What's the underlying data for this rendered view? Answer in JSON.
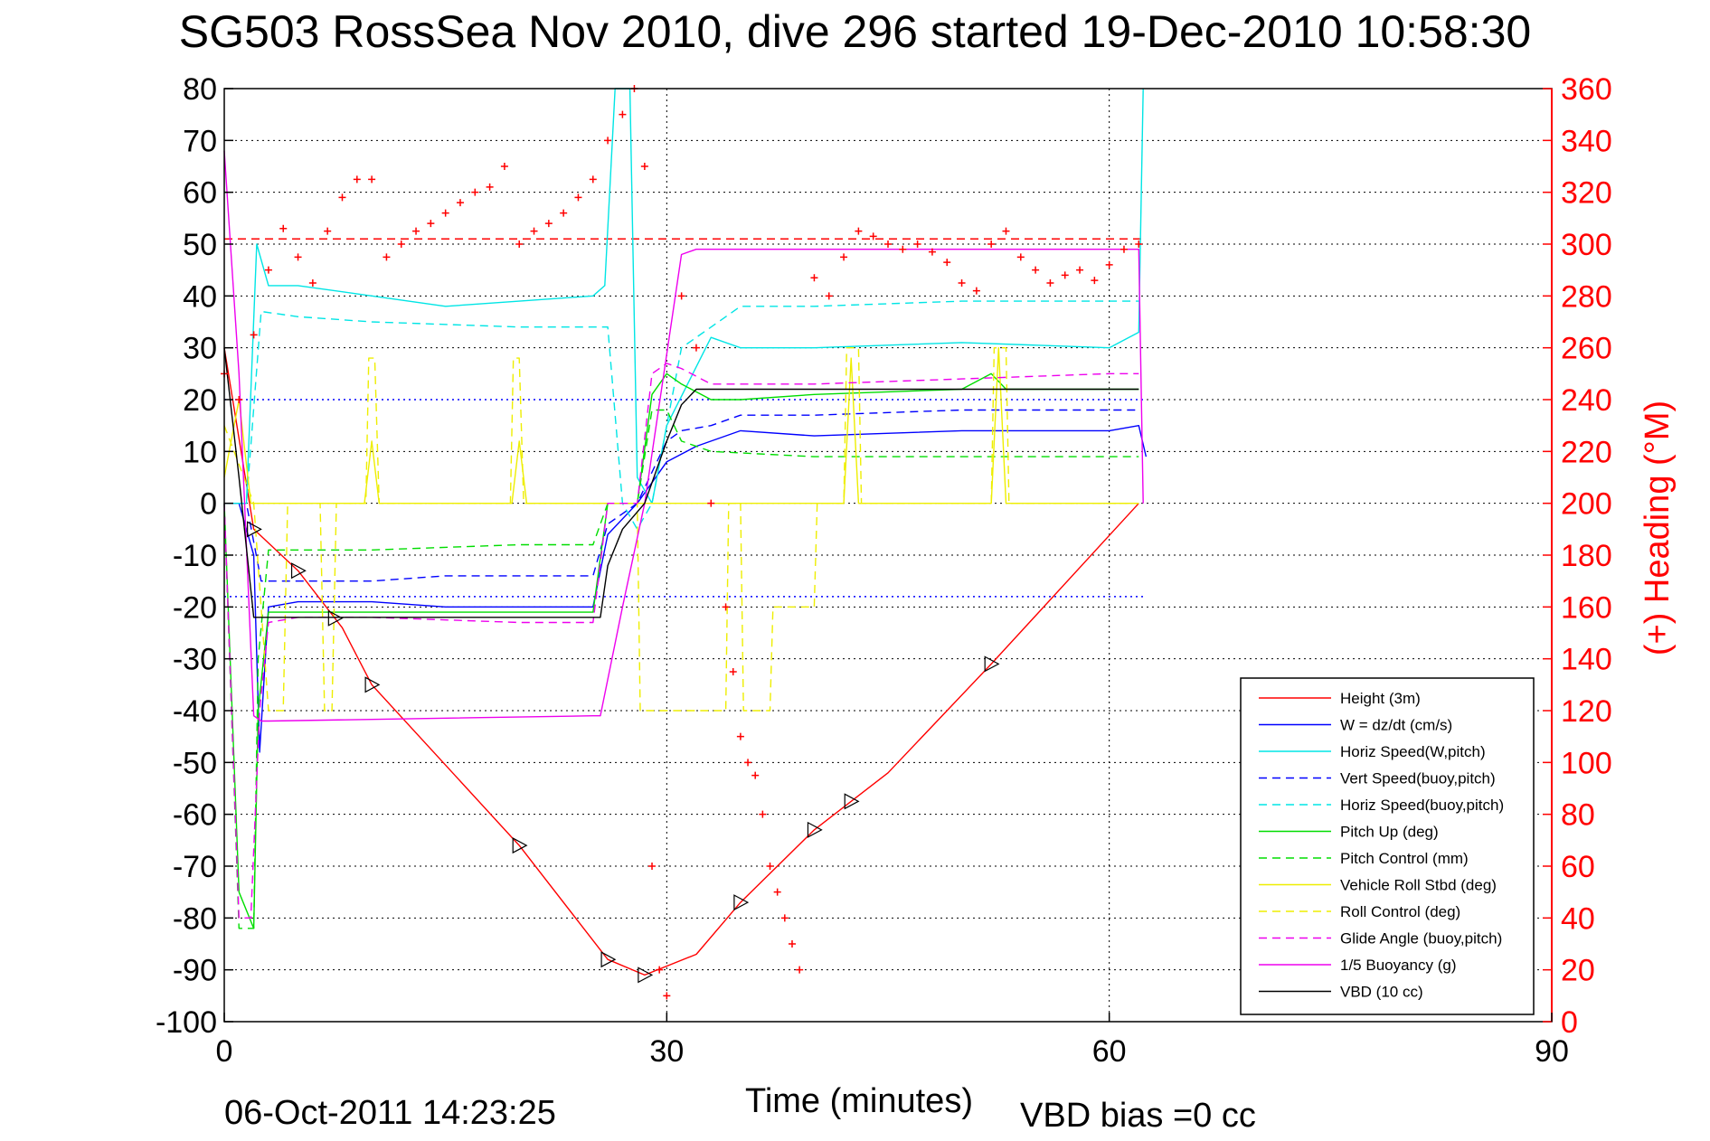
{
  "header": {
    "title": "SG503 RossSea Nov 2010, dive 296 started 19-Dec-2010 10:58:30"
  },
  "footer": {
    "timestamp": "06-Oct-2011 14:23:25",
    "vbd_bias": "VBD bias =0 cc"
  },
  "chart_data": {
    "type": "line",
    "title": "SG503 RossSea Nov 2010, dive 296 started 19-Dec-2010 10:58:30",
    "xlabel": "Time (minutes)",
    "ylabel": "",
    "y2label": "(+) Heading (°M)",
    "xlim": [
      0,
      90
    ],
    "ylim": [
      -100,
      80
    ],
    "y2lim": [
      0,
      360
    ],
    "xticks": [
      0,
      30,
      60,
      90
    ],
    "yticks": [
      -100,
      -90,
      -80,
      -70,
      -60,
      -50,
      -40,
      -30,
      -20,
      -10,
      0,
      10,
      20,
      30,
      40,
      50,
      60,
      70,
      80
    ],
    "y2ticks": [
      0,
      20,
      40,
      60,
      80,
      100,
      120,
      140,
      160,
      180,
      200,
      220,
      240,
      260,
      280,
      300,
      320,
      340,
      360
    ],
    "grid": "dotted at x ticks; dotted horizontal reference lines",
    "legend_position": "lower-right",
    "reference_lines": [
      {
        "axis": "y",
        "value": 20,
        "color": "#0000ff",
        "style": "dotted"
      },
      {
        "axis": "y",
        "value": -18,
        "color": "#0000ff",
        "style": "dotted"
      },
      {
        "axis": "y2",
        "value": 302,
        "color": "#ff0000",
        "style": "dashed"
      }
    ],
    "series": [
      {
        "name": "Height (3m)",
        "color": "#ff0000",
        "style": "solid",
        "axis": "left",
        "x": [
          0,
          2,
          5,
          8,
          10,
          20,
          26,
          28.5,
          32,
          35,
          40,
          45,
          52,
          62
        ],
        "y": [
          30,
          -5,
          -13,
          -24,
          -35,
          -66,
          -88,
          -91,
          -87,
          -77,
          -63,
          -52,
          -31,
          0
        ]
      },
      {
        "name": "W = dz/dt (cm/s)",
        "color": "#0000ff",
        "style": "solid",
        "axis": "left",
        "x": [
          0,
          1,
          2,
          2.4,
          3,
          5,
          10,
          15,
          20,
          25,
          26,
          28,
          30,
          32,
          35,
          40,
          50,
          60,
          62,
          62.5
        ],
        "y": [
          0,
          0,
          -10,
          -48,
          -20,
          -19,
          -19,
          -20,
          -20,
          -20,
          -6,
          0,
          8,
          11,
          14,
          13,
          14,
          14,
          15,
          9
        ]
      },
      {
        "name": "Horiz Speed(W,pitch)",
        "color": "#00e5e5",
        "style": "solid",
        "axis": "left",
        "x": [
          0,
          1.5,
          2.2,
          3,
          5,
          10,
          15,
          20,
          25,
          25.8,
          26.5,
          27.5,
          28,
          29,
          30,
          33,
          35,
          40,
          50,
          60,
          62,
          62.3
        ],
        "y": [
          0,
          0,
          50,
          42,
          42,
          40,
          38,
          39,
          40,
          42,
          80,
          80,
          5,
          0,
          15,
          32,
          30,
          30,
          31,
          30,
          33,
          80
        ]
      },
      {
        "name": "Vert Speed(buoy,pitch)",
        "color": "#0000ff",
        "style": "dashed",
        "axis": "left",
        "x": [
          0,
          1.5,
          2.5,
          5,
          10,
          15,
          20,
          25,
          26,
          28,
          30,
          31,
          33,
          35,
          40,
          50,
          60,
          62
        ],
        "y": [
          0,
          0,
          -15,
          -15,
          -15,
          -14,
          -14,
          -14,
          -4,
          0,
          12,
          14,
          15,
          17,
          17,
          18,
          18,
          18
        ]
      },
      {
        "name": "Horiz Speed(buoy,pitch)",
        "color": "#00e5e5",
        "style": "dashed",
        "axis": "left",
        "x": [
          0,
          1.5,
          2.5,
          5,
          10,
          20,
          25,
          26,
          27,
          28,
          29,
          31,
          34,
          35,
          40,
          50,
          60,
          62
        ],
        "y": [
          0,
          0,
          37,
          36,
          35,
          34,
          34,
          34,
          0,
          -5,
          0,
          30,
          36,
          38,
          38,
          39,
          39,
          39
        ]
      },
      {
        "name": "Pitch Up (deg)",
        "color": "#00dd00",
        "style": "solid",
        "axis": "left",
        "x": [
          0,
          1,
          2,
          2.3,
          3,
          5,
          10,
          20,
          25,
          26,
          28,
          29,
          30,
          31,
          33,
          35,
          40,
          50,
          52,
          53,
          60,
          62
        ],
        "y": [
          0,
          -75,
          -82,
          -40,
          -21,
          -21,
          -21,
          -21,
          -21,
          0,
          0,
          21,
          25,
          23,
          20,
          20,
          21,
          22,
          25,
          22,
          22,
          22
        ]
      },
      {
        "name": "Pitch Control (mm)",
        "color": "#00dd00",
        "style": "dashed",
        "axis": "left",
        "x": [
          0,
          1,
          2,
          2.3,
          3,
          8,
          10,
          20,
          25,
          26,
          28,
          29,
          30,
          31,
          33,
          40,
          60,
          62
        ],
        "y": [
          0,
          -82,
          -82,
          -30,
          -9,
          -9,
          -9,
          -8,
          -8,
          0,
          0,
          18,
          18,
          12,
          10,
          9,
          9,
          9
        ]
      },
      {
        "name": "Vehicle Roll Stbd (deg)",
        "color": "#eeee00",
        "style": "solid",
        "axis": "left",
        "x": [
          0,
          1,
          1.8,
          2.5,
          4,
          7,
          9.5,
          10,
          10.5,
          12,
          19.5,
          20,
          20.5,
          22,
          30,
          42,
          42.5,
          43,
          52,
          52.5,
          53,
          62
        ],
        "y": [
          5,
          20,
          0,
          0,
          0,
          0,
          0,
          12,
          0,
          0,
          0,
          12,
          0,
          0,
          0,
          0,
          28,
          0,
          0,
          30,
          0,
          0
        ]
      },
      {
        "name": "Roll Control (deg)",
        "color": "#eeee00",
        "style": "dashed",
        "axis": "left",
        "x": [
          0,
          2,
          3,
          4,
          4.3,
          6.5,
          6.8,
          7.3,
          7.6,
          9.6,
          9.8,
          10.2,
          10.5,
          19.4,
          19.6,
          20,
          20.3,
          26,
          28,
          28.2,
          30,
          34,
          34.2,
          35,
          35.2,
          37,
          37.2,
          40,
          40.2,
          42,
          42.2,
          43,
          43.2,
          52,
          52.2,
          53,
          53.2,
          62
        ],
        "y": [
          15,
          0,
          -40,
          -40,
          0,
          0,
          -40,
          -40,
          0,
          0,
          28,
          28,
          0,
          0,
          28,
          28,
          0,
          0,
          0,
          -40,
          -40,
          -40,
          0,
          0,
          -40,
          -40,
          -20,
          -20,
          0,
          0,
          30,
          30,
          0,
          0,
          30,
          30,
          0,
          0
        ]
      },
      {
        "name": "Glide Angle (buoy,pitch)",
        "color": "#ee00ee",
        "style": "dashed",
        "axis": "left",
        "x": [
          0,
          1,
          1.8,
          2.4,
          3,
          5,
          10,
          20,
          25,
          26,
          28,
          29,
          30,
          31,
          33,
          40,
          50,
          60,
          62
        ],
        "y": [
          0,
          -80,
          -80,
          -40,
          -23,
          -22,
          -22,
          -23,
          -23,
          0,
          0,
          25,
          27,
          26,
          23,
          23,
          24,
          25,
          25
        ]
      },
      {
        "name": "1/5 Buoyancy (g)",
        "color": "#ee00ee",
        "style": "solid",
        "axis": "left",
        "x": [
          0,
          1,
          2,
          2.5,
          3,
          25,
          25.5,
          27,
          28.5,
          31,
          32,
          40,
          50,
          60,
          62,
          62.3
        ],
        "y": [
          68,
          25,
          -41,
          -42,
          -42,
          -41,
          -41,
          -20,
          0,
          48,
          49,
          49,
          49,
          49,
          49,
          0
        ]
      },
      {
        "name": "VBD (10 cc)",
        "color": "#000000",
        "style": "solid",
        "axis": "left",
        "x": [
          0,
          1,
          2,
          2.5,
          3,
          10,
          25,
          25.5,
          26,
          27,
          28.5,
          30,
          31,
          32,
          40,
          50,
          60,
          62
        ],
        "y": [
          30,
          5,
          -22,
          -22,
          -22,
          -22,
          -22,
          -22,
          -12,
          -5,
          0,
          12,
          19,
          22,
          22,
          22,
          22,
          22
        ]
      },
      {
        "name": "Heading markers",
        "color": "#ff0000",
        "style": "plus-markers",
        "axis": "right",
        "x": [
          0,
          1,
          2,
          3,
          4,
          5,
          6,
          7,
          8,
          9,
          10,
          11,
          12,
          13,
          14,
          15,
          16,
          17,
          18,
          19,
          20,
          21,
          22,
          23,
          24,
          25,
          26,
          27,
          27.8,
          28.5,
          29,
          29.5,
          30,
          31,
          32,
          33,
          34,
          34.5,
          35,
          35.5,
          36,
          36.5,
          37,
          37.5,
          38,
          38.5,
          39,
          40,
          41,
          42,
          43,
          44,
          45,
          46,
          47,
          48,
          49,
          50,
          51,
          52,
          53,
          54,
          55,
          56,
          57,
          58,
          59,
          60,
          61,
          62
        ],
        "y": [
          250,
          240,
          265,
          290,
          306,
          295,
          285,
          305,
          318,
          325,
          325,
          295,
          300,
          305,
          308,
          312,
          316,
          320,
          322,
          330,
          300,
          305,
          308,
          312,
          318,
          325,
          340,
          350,
          360,
          330,
          60,
          20,
          10,
          280,
          260,
          200,
          160,
          135,
          110,
          100,
          95,
          80,
          60,
          50,
          40,
          30,
          20,
          287,
          280,
          295,
          305,
          303,
          300,
          298,
          300,
          297,
          293,
          285,
          282,
          300,
          305,
          295,
          290,
          285,
          288,
          290,
          286,
          292,
          298,
          300
        ]
      }
    ]
  }
}
